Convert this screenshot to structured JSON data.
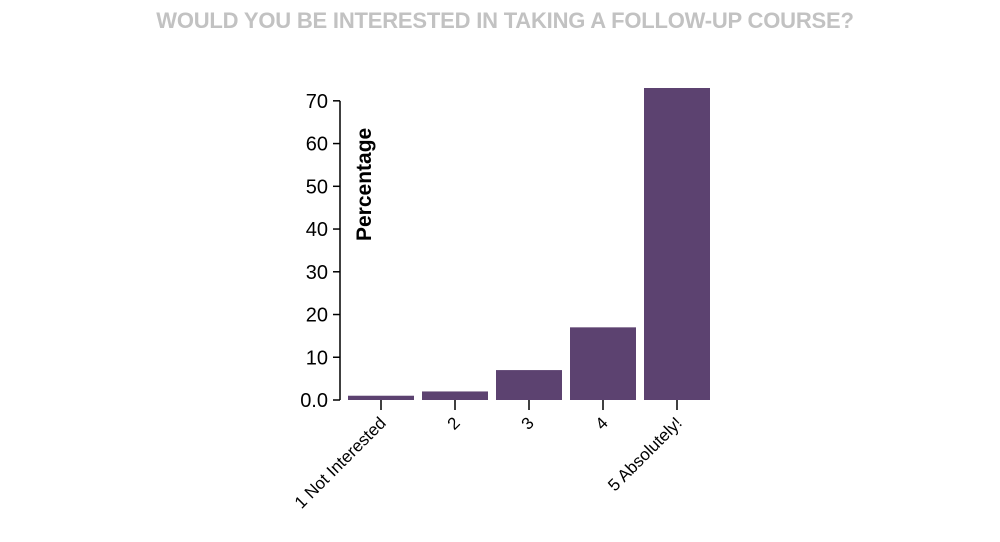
{
  "chart_data": {
    "type": "bar",
    "title": "WOULD YOU BE INTERESTED IN TAKING A FOLLOW-UP COURSE?",
    "ylabel": "Percentage",
    "xlabel": "",
    "categories": [
      "1 Not Interested",
      "2",
      "3",
      "4",
      "5 Absolutely!"
    ],
    "values": [
      1,
      2,
      7,
      17,
      73
    ],
    "ylim": [
      0,
      73
    ],
    "yticks": [
      "0.0",
      "10",
      "20",
      "30",
      "40",
      "50",
      "60",
      "70"
    ],
    "grid": false,
    "bar_color": "#5c4270",
    "title_color": "#c2c2c2"
  }
}
